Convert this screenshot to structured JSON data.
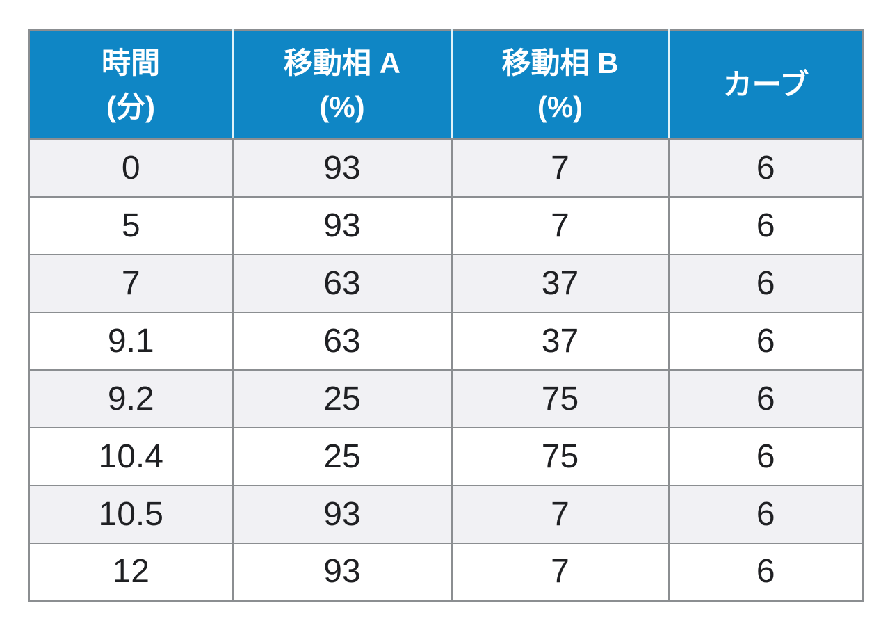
{
  "chart_data": {
    "type": "table",
    "title": "",
    "columns": [
      {
        "label": "時間 (分)",
        "line1": "時間",
        "line2": "(分)"
      },
      {
        "label": "移動相 A (%)",
        "line1": "移動相 A",
        "line2": "(%)"
      },
      {
        "label": "移動相 B (%)",
        "line1": "移動相 B",
        "line2": "(%)"
      },
      {
        "label": "カーブ",
        "line1": "カーブ",
        "line2": ""
      }
    ],
    "rows": [
      [
        "0",
        "93",
        "7",
        "6"
      ],
      [
        "5",
        "93",
        "7",
        "6"
      ],
      [
        "7",
        "63",
        "37",
        "6"
      ],
      [
        "9.1",
        "63",
        "37",
        "6"
      ],
      [
        "9.2",
        "25",
        "75",
        "6"
      ],
      [
        "10.4",
        "25",
        "75",
        "6"
      ],
      [
        "10.5",
        "93",
        "7",
        "6"
      ],
      [
        "12",
        "93",
        "7",
        "6"
      ]
    ]
  },
  "colors": {
    "header_bg": "#0f86c5",
    "header_text": "#ffffff",
    "header_sep": "#dff2f9",
    "row_alt_bg": "#f1f1f4",
    "row_bg": "#ffffff",
    "border": "#8b8e91",
    "body_text": "#1f2023",
    "page_bg": "#ffffff"
  }
}
